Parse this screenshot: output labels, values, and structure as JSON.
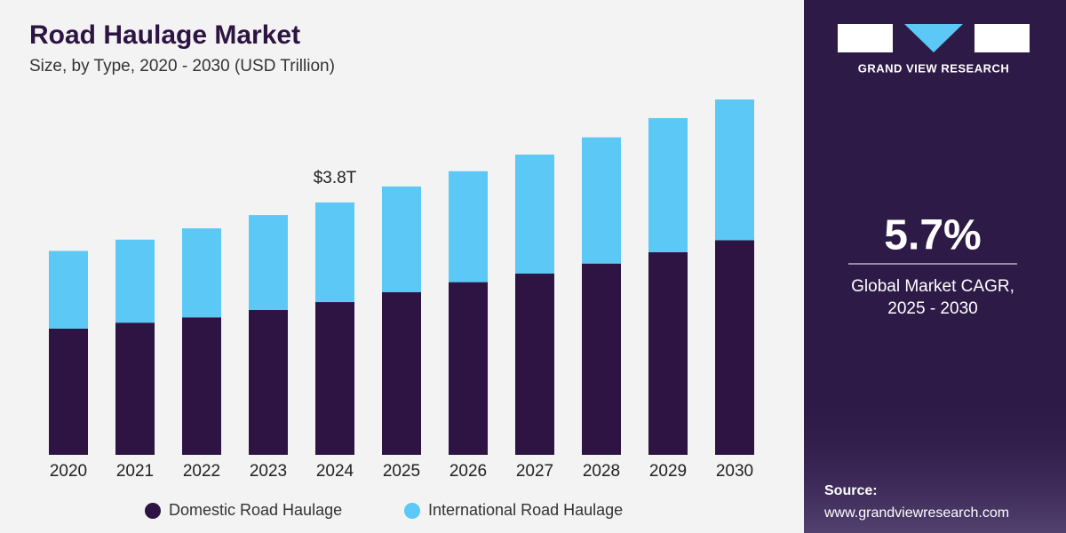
{
  "chart_data": {
    "type": "stacked_bar",
    "title": "Road Haulage Market",
    "subtitle": "Size, by Type, 2020 - 2030 (USD Trillion)",
    "categories": [
      "2020",
      "2021",
      "2022",
      "2023",
      "2024",
      "2025",
      "2026",
      "2027",
      "2028",
      "2029",
      "2030"
    ],
    "series": [
      {
        "name": "Domestic Road Haulage",
        "color": "#2d1442",
        "values": [
          1.9,
          1.99,
          2.07,
          2.18,
          2.3,
          2.45,
          2.6,
          2.73,
          2.88,
          3.05,
          3.23
        ]
      },
      {
        "name": "International Road Haulage",
        "color": "#5bc8f5",
        "values": [
          1.17,
          1.25,
          1.34,
          1.43,
          1.5,
          1.59,
          1.67,
          1.79,
          1.9,
          2.02,
          2.12
        ]
      }
    ],
    "annotation": {
      "text": "$3.8T",
      "category": "2024"
    }
  },
  "panel": {
    "brand": "GRAND VIEW RESEARCH",
    "cagr": "5.7%",
    "cagr_label": [
      "Global Market CAGR,",
      "2025 - 2030"
    ],
    "source_label": "Source:",
    "source_url": "www.grandviewresearch.com"
  }
}
